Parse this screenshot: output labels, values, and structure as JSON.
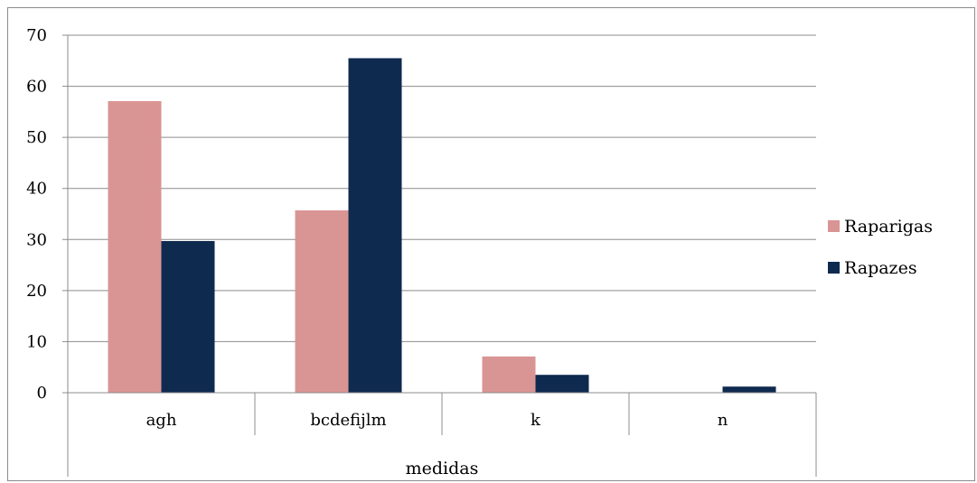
{
  "chart_data": {
    "type": "bar",
    "title": "",
    "xlabel": "medidas",
    "ylabel": "",
    "categories": [
      "agh",
      "bcdefijlm",
      "k",
      "n"
    ],
    "series": [
      {
        "name": "Raparigas",
        "color": "#d99594",
        "values": [
          57.1,
          35.7,
          7.1,
          0
        ]
      },
      {
        "name": "Rapazes",
        "color": "#0f2a4f",
        "values": [
          29.7,
          65.5,
          3.5,
          1.2
        ]
      }
    ],
    "ylim": [
      0,
      70
    ],
    "yticks": [
      0,
      10,
      20,
      30,
      40,
      50,
      60,
      70
    ],
    "grid": true,
    "legend": "right"
  }
}
